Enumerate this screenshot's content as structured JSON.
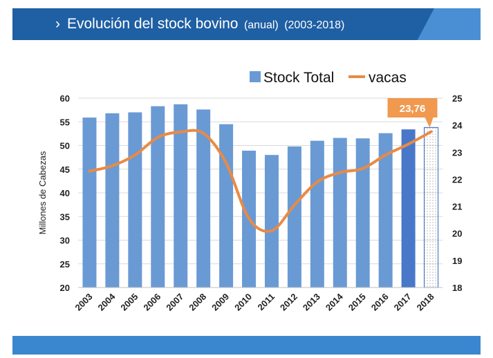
{
  "header": {
    "chevron": "›",
    "title": "Evolución del stock bovino",
    "subtitle_period": "(anual)",
    "subtitle_years": "(2003-2018)"
  },
  "colors": {
    "bar": "#6a9ad4",
    "bar_highlight": "#4a78c8",
    "line": "#e98a45",
    "callout": "#f0994f"
  },
  "chart_data": {
    "type": "bar+line",
    "categories": [
      "2003",
      "2004",
      "2005",
      "2006",
      "2007",
      "2008",
      "2009",
      "2010",
      "2011",
      "2012",
      "2013",
      "2014",
      "2015",
      "2016",
      "2017",
      "2018"
    ],
    "series": [
      {
        "name": "Stock Total",
        "type": "bar",
        "axis": "left",
        "values": [
          55.9,
          56.8,
          57.0,
          58.3,
          58.7,
          57.6,
          54.5,
          48.9,
          48.0,
          49.8,
          51.0,
          51.6,
          51.5,
          52.6,
          53.4,
          null
        ]
      },
      {
        "name": "vacas",
        "type": "line",
        "axis": "right",
        "values": [
          22.3,
          22.5,
          22.9,
          23.55,
          23.75,
          23.7,
          22.6,
          20.55,
          20.1,
          21.05,
          21.9,
          22.25,
          22.4,
          22.9,
          23.3,
          23.76
        ]
      }
    ],
    "legend": [
      "Stock Total",
      "vacas"
    ],
    "ylabel": "Millones  de Cabezas",
    "ylim": [
      20,
      60
    ],
    "yticks": [
      "20",
      "25",
      "30",
      "35",
      "40",
      "45",
      "50",
      "55",
      "60"
    ],
    "y2lim": [
      18,
      25
    ],
    "y2ticks": [
      "18",
      "19",
      "20",
      "21",
      "22",
      "23",
      "24",
      "25"
    ],
    "annotation": {
      "label": "23,76",
      "category": "2018"
    }
  }
}
